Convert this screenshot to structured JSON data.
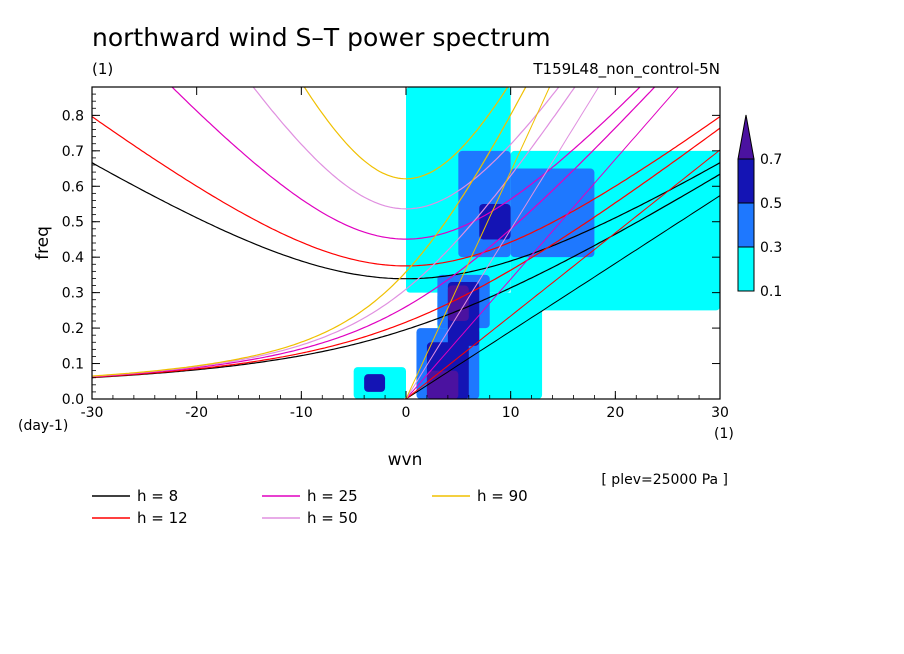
{
  "chart_data": {
    "type": "heatmap",
    "title": "northward wind S–T power spectrum",
    "units": "(1)",
    "experiment": "T159L48_non_control-5N",
    "xlabel": "wvn",
    "ylabel": "freq",
    "x_units": "(1)",
    "y_units": "(day-1)",
    "note": "[ plev=25000 Pa ]",
    "xlim": [
      -30,
      30
    ],
    "ylim": [
      0,
      0.88
    ],
    "xticks": [
      "-30",
      "-20",
      "-10",
      "0",
      "10",
      "20",
      "30"
    ],
    "yticks": [
      "0.0",
      "0.1",
      "0.2",
      "0.3",
      "0.4",
      "0.5",
      "0.6",
      "0.7",
      "0.8"
    ],
    "colorbar": {
      "levels": [
        "0.1",
        "0.3",
        "0.5",
        "0.7"
      ],
      "colors": [
        "#00ffff",
        "#1e78ff",
        "#1414b4",
        "#4b12a0"
      ]
    },
    "contour_fill": {
      "description_free": true,
      "cells": [
        {
          "x": 0,
          "y": 0.3,
          "w": 10,
          "h": 0.58,
          "level": 0
        },
        {
          "x": 3,
          "y": 0.0,
          "w": 10,
          "h": 0.3,
          "level": 0
        },
        {
          "x": 10,
          "y": 0.25,
          "w": 20,
          "h": 0.45,
          "level": 0
        },
        {
          "x": -5,
          "y": 0.0,
          "w": 5,
          "h": 0.09,
          "level": 0
        },
        {
          "x": 1,
          "y": 0.0,
          "w": 6,
          "h": 0.2,
          "level": 1
        },
        {
          "x": 3,
          "y": 0.2,
          "w": 5,
          "h": 0.15,
          "level": 1
        },
        {
          "x": 5,
          "y": 0.4,
          "w": 5,
          "h": 0.3,
          "level": 1
        },
        {
          "x": 10,
          "y": 0.4,
          "w": 8,
          "h": 0.25,
          "level": 1
        },
        {
          "x": 2,
          "y": 0.0,
          "w": 4,
          "h": 0.16,
          "level": 2
        },
        {
          "x": 4,
          "y": 0.15,
          "w": 3,
          "h": 0.18,
          "level": 2
        },
        {
          "x": 7,
          "y": 0.45,
          "w": 3,
          "h": 0.1,
          "level": 2
        },
        {
          "x": -4,
          "y": 0.02,
          "w": 2,
          "h": 0.05,
          "level": 2
        },
        {
          "x": 2,
          "y": 0.0,
          "w": 3,
          "h": 0.08,
          "level": 3
        },
        {
          "x": 4,
          "y": 0.22,
          "w": 2,
          "h": 0.1,
          "level": 3
        }
      ]
    },
    "series": [
      {
        "name": "h =  8",
        "color": "#000000",
        "equivalent_depth": 8
      },
      {
        "name": "h = 12",
        "color": "#ff0000",
        "equivalent_depth": 12
      },
      {
        "name": "h = 25",
        "color": "#e000c0",
        "equivalent_depth": 25
      },
      {
        "name": "h = 50",
        "color": "#e090e0",
        "equivalent_depth": 50
      },
      {
        "name": "h = 90",
        "color": "#f0c000",
        "equivalent_depth": 90
      }
    ],
    "legend_position": "bottom",
    "grid": false
  }
}
